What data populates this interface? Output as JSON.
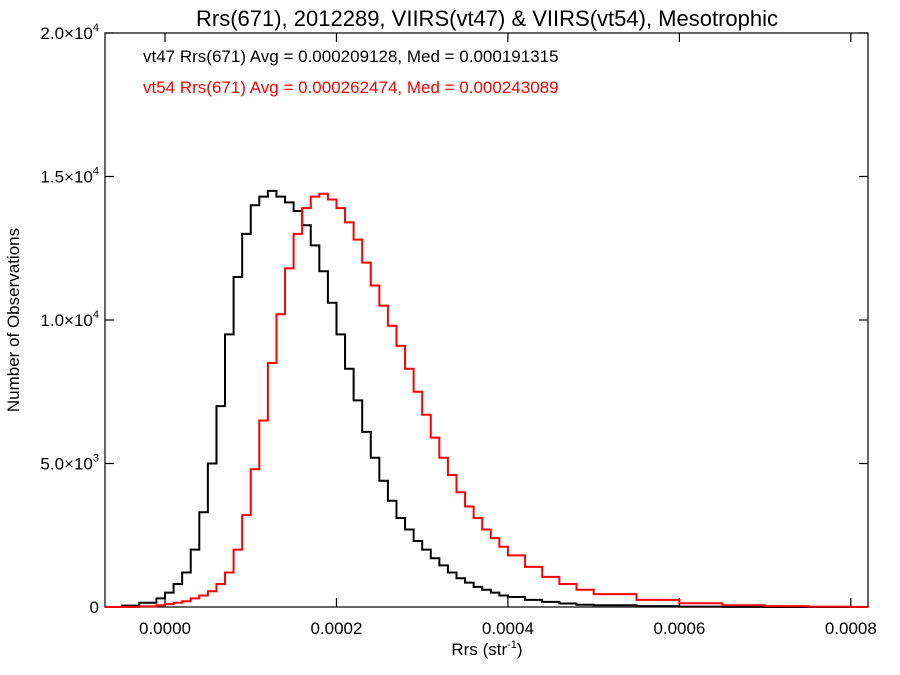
{
  "chart_data": {
    "type": "line",
    "title": "Rrs(671), 2012289, VIIRS(vt47) & VIIRS(vt54), Mesotrophic",
    "xlabel_base": "Rrs (str",
    "xlabel_sup": "-1",
    "xlabel_close": ")",
    "ylabel": "Number of Observations",
    "xlim": [
      -7e-05,
      0.00082
    ],
    "ylim": [
      0,
      20000
    ],
    "grid": false,
    "x_ticks": [
      {
        "value": 0.0,
        "label": "0.0000"
      },
      {
        "value": 0.0002,
        "label": "0.0002"
      },
      {
        "value": 0.0004,
        "label": "0.0004"
      },
      {
        "value": 0.0006,
        "label": "0.0006"
      },
      {
        "value": 0.0008,
        "label": "0.0008"
      }
    ],
    "y_ticks": [
      {
        "value": 0,
        "label": "0",
        "sup": ""
      },
      {
        "value": 5000,
        "label": "5.0×10",
        "sup": "3"
      },
      {
        "value": 10000,
        "label": "1.0×10",
        "sup": "4"
      },
      {
        "value": 15000,
        "label": "1.5×10",
        "sup": "4"
      },
      {
        "value": 20000,
        "label": "2.0×10",
        "sup": "4"
      }
    ],
    "annotations": [
      {
        "text": "vt47 Rrs(671) Avg = 0.000209128, Med = 0.000191315",
        "color": "#000000"
      },
      {
        "text": "vt54 Rrs(671) Avg = 0.000262474, Med = 0.000243089",
        "color": "#ff0000"
      }
    ],
    "series": [
      {
        "color": "#000000",
        "x": [
          -7e-05,
          -5e-05,
          -3e-05,
          -1e-05,
          0.0,
          1e-05,
          2e-05,
          3e-05,
          4e-05,
          5e-05,
          6e-05,
          7e-05,
          8e-05,
          9e-05,
          0.0001,
          0.00011,
          0.00012,
          0.00013,
          0.00014,
          0.00015,
          0.00016,
          0.00017,
          0.00018,
          0.00019,
          0.0002,
          0.00021,
          0.00022,
          0.00023,
          0.00024,
          0.00025,
          0.00026,
          0.00027,
          0.00028,
          0.00029,
          0.0003,
          0.00031,
          0.00032,
          0.00033,
          0.00034,
          0.00035,
          0.00036,
          0.00037,
          0.00038,
          0.00039,
          0.0004,
          0.00042,
          0.00044,
          0.00046,
          0.00048,
          0.0005,
          0.00055,
          0.0006,
          0.00065,
          0.0007,
          0.00075,
          0.0008,
          0.00082
        ],
        "values": [
          0,
          50,
          150,
          300,
          500,
          800,
          1200,
          2000,
          3300,
          5000,
          7000,
          9500,
          11500,
          13000,
          14000,
          14300,
          14500,
          14300,
          14100,
          13800,
          13300,
          12600,
          11700,
          10600,
          9500,
          8300,
          7200,
          6100,
          5200,
          4400,
          3700,
          3100,
          2700,
          2300,
          2000,
          1700,
          1450,
          1200,
          1000,
          850,
          700,
          600,
          500,
          400,
          350,
          250,
          180,
          120,
          80,
          60,
          30,
          15,
          5,
          0,
          0,
          0,
          0
        ]
      },
      {
        "color": "#ff0000",
        "x": [
          -7e-05,
          -5e-05,
          -3e-05,
          -1e-05,
          0.0,
          1e-05,
          2e-05,
          3e-05,
          4e-05,
          5e-05,
          6e-05,
          7e-05,
          8e-05,
          9e-05,
          0.0001,
          0.00011,
          0.00012,
          0.00013,
          0.00014,
          0.00015,
          0.00016,
          0.00017,
          0.00018,
          0.00019,
          0.0002,
          0.00021,
          0.00022,
          0.00023,
          0.00024,
          0.00025,
          0.00026,
          0.00027,
          0.00028,
          0.00029,
          0.0003,
          0.00031,
          0.00032,
          0.00033,
          0.00034,
          0.00035,
          0.00036,
          0.00037,
          0.00038,
          0.00039,
          0.0004,
          0.00042,
          0.00044,
          0.00046,
          0.00048,
          0.0005,
          0.00055,
          0.0006,
          0.00065,
          0.0007,
          0.00075,
          0.0008,
          0.00082
        ],
        "values": [
          0,
          0,
          20,
          60,
          100,
          150,
          200,
          300,
          400,
          550,
          800,
          1200,
          2000,
          3200,
          4800,
          6500,
          8500,
          10200,
          11800,
          13000,
          13900,
          14300,
          14400,
          14200,
          13900,
          13400,
          12800,
          12000,
          11200,
          10500,
          9800,
          9100,
          8300,
          7500,
          6700,
          5900,
          5200,
          4600,
          4000,
          3500,
          3100,
          2700,
          2400,
          2100,
          1800,
          1400,
          1050,
          800,
          600,
          450,
          250,
          130,
          60,
          30,
          15,
          5,
          0
        ]
      }
    ]
  }
}
